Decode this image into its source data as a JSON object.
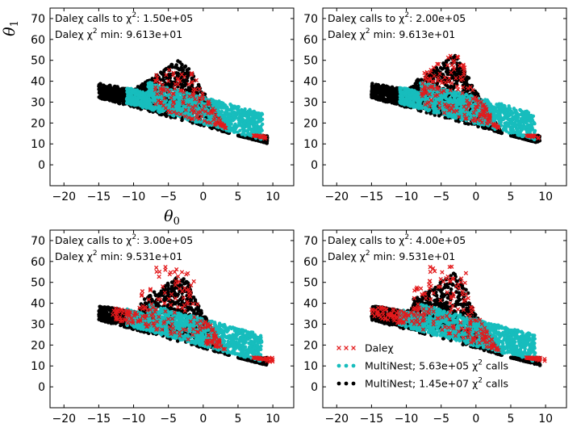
{
  "chart_data": [
    {
      "type": "scatter",
      "xlim": [
        -22,
        13
      ],
      "ylim": [
        -10,
        75
      ],
      "xticks": [
        "−20",
        "−15",
        "−10",
        "−5",
        "0",
        "5",
        "10"
      ],
      "xtick_values": [
        -20,
        -15,
        -10,
        -5,
        0,
        5,
        10
      ],
      "yticks": [
        "0",
        "10",
        "20",
        "30",
        "40",
        "50",
        "60",
        "70"
      ],
      "ytick_values": [
        0,
        10,
        20,
        30,
        40,
        50,
        60,
        70
      ],
      "xlabel": "θ",
      "xlabel_sub": "0",
      "ylabel": "θ",
      "ylabel_sub": "1",
      "annotation_calls_prefix": "Daleχ calls to χ",
      "annotation_calls_value": ": 1.50e+05",
      "annotation_min_prefix": "Daleχ χ",
      "annotation_min_value": " min: 9.613e+01",
      "dalex_region": {
        "x_range": [
          -7,
          9
        ],
        "y_top_max": 46
      }
    },
    {
      "type": "scatter",
      "xlim": [
        -22,
        13
      ],
      "ylim": [
        -10,
        75
      ],
      "xticks": [
        "−20",
        "−15",
        "−10",
        "−5",
        "0",
        "5",
        "10"
      ],
      "xtick_values": [
        -20,
        -15,
        -10,
        -5,
        0,
        5,
        10
      ],
      "yticks": [
        "0",
        "10",
        "20",
        "30",
        "40",
        "50",
        "60",
        "70"
      ],
      "ytick_values": [
        0,
        10,
        20,
        30,
        40,
        50,
        60,
        70
      ],
      "xlabel": "",
      "ylabel": "",
      "annotation_calls_prefix": "Daleχ calls to χ",
      "annotation_calls_value": ": 2.00e+05",
      "annotation_min_prefix": "Daleχ χ",
      "annotation_min_value": " min: 9.613e+01",
      "dalex_region": {
        "x_range": [
          -8,
          9
        ],
        "y_top_max": 53
      }
    },
    {
      "type": "scatter",
      "xlim": [
        -22,
        13
      ],
      "ylim": [
        -10,
        75
      ],
      "xticks": [
        "−20",
        "−15",
        "−10",
        "−5",
        "0",
        "5",
        "10"
      ],
      "xtick_values": [
        -20,
        -15,
        -10,
        -5,
        0,
        5,
        10
      ],
      "yticks": [
        "0",
        "10",
        "20",
        "30",
        "40",
        "50",
        "60",
        "70"
      ],
      "ytick_values": [
        0,
        10,
        20,
        30,
        40,
        50,
        60,
        70
      ],
      "xlabel": "",
      "ylabel": "",
      "annotation_calls_prefix": "Daleχ calls to χ",
      "annotation_calls_value": ": 3.00e+05",
      "annotation_min_prefix": "Daleχ χ",
      "annotation_min_value": " min: 9.531e+01",
      "dalex_region": {
        "x_range": [
          -13,
          10
        ],
        "y_top_max": 58
      }
    },
    {
      "type": "scatter",
      "xlim": [
        -22,
        13
      ],
      "ylim": [
        -10,
        75
      ],
      "xticks": [
        "−20",
        "−15",
        "−10",
        "−5",
        "0",
        "5",
        "10"
      ],
      "xtick_values": [
        -20,
        -15,
        -10,
        -5,
        0,
        5,
        10
      ],
      "yticks": [
        "0",
        "10",
        "20",
        "30",
        "40",
        "50",
        "60",
        "70"
      ],
      "ytick_values": [
        0,
        10,
        20,
        30,
        40,
        50,
        60,
        70
      ],
      "xlabel": "",
      "ylabel": "",
      "annotation_calls_prefix": "Daleχ calls to χ",
      "annotation_calls_value": ": 4.00e+05",
      "annotation_min_prefix": "Daleχ χ",
      "annotation_min_value": " min: 9.531e+01",
      "dalex_region": {
        "x_range": [
          -15,
          10
        ],
        "y_top_max": 58
      },
      "legend": {
        "placement": "lower-left",
        "entries": [
          {
            "label": "Daleχ",
            "marker": "x",
            "color": "#e31a1c"
          },
          {
            "label_prefix": "MultiNest; 5.63e+05 χ",
            "label_suffix": " calls",
            "marker": "dot",
            "color": "#17bdbd"
          },
          {
            "label_prefix": "MultiNest; 1.45e+07 χ",
            "label_suffix": " calls",
            "marker": "dot",
            "color": "#000000"
          }
        ]
      }
    }
  ],
  "colors": {
    "dalex": "#e31a1c",
    "multinest_small": "#17bdbd",
    "multinest_large": "#000000"
  },
  "superscript": "2"
}
